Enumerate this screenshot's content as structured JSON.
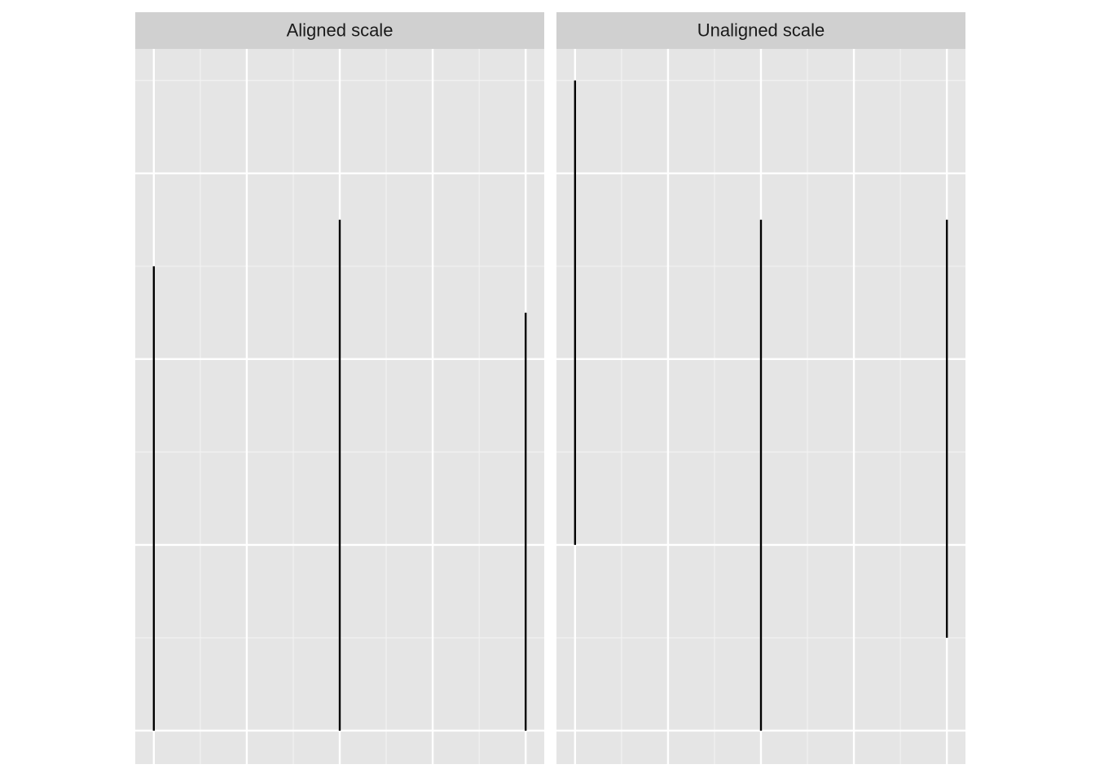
{
  "chart_data": [
    {
      "type": "segment",
      "title": "Aligned scale",
      "color": "#000000",
      "x": [
        1,
        2,
        3
      ],
      "ystart": [
        0,
        0,
        0
      ],
      "yend": [
        2.5,
        2.75,
        2.25
      ],
      "xlim": [
        0.9,
        3.1
      ],
      "xticks": [
        1,
        1.5,
        2,
        2.5,
        3
      ],
      "xminor": [
        1.25,
        1.75,
        2.25,
        2.75
      ],
      "ylim": [
        -0.18,
        3.67
      ],
      "yticks": [
        0,
        1,
        2,
        3
      ],
      "yminor": [
        0.5,
        1.5,
        2.5,
        3.5
      ],
      "grid": true
    },
    {
      "type": "segment",
      "title": "Unaligned scale",
      "color": "#000000",
      "x": [
        1,
        2,
        3
      ],
      "ystart": [
        1,
        0,
        0.5
      ],
      "yend": [
        3.5,
        2.75,
        2.75
      ],
      "xlim": [
        0.9,
        3.1
      ],
      "xticks": [
        1,
        1.5,
        2,
        2.5,
        3
      ],
      "xminor": [
        1.25,
        1.75,
        2.25,
        2.75
      ],
      "ylim": [
        -0.18,
        3.67
      ],
      "yticks": [
        0,
        1,
        2,
        3
      ],
      "yminor": [
        0.5,
        1.5,
        2.5,
        3.5
      ],
      "grid": true
    }
  ]
}
